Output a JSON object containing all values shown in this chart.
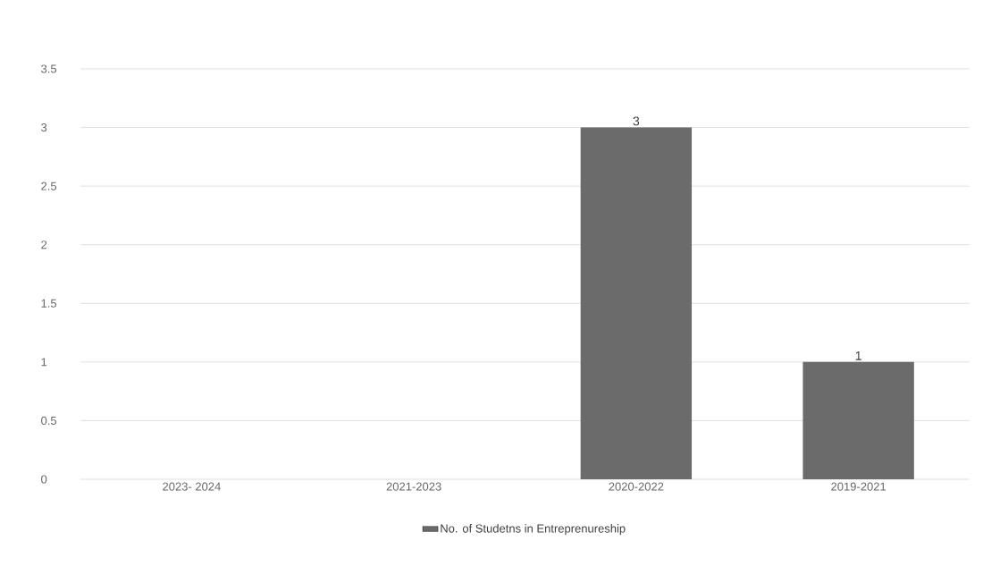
{
  "chart_data": {
    "type": "bar",
    "categories": [
      "2023- 2024",
      "2021-2023",
      "2020-2022",
      "2019-2021"
    ],
    "series": [
      {
        "name": "No. of Studetns in Entreprenureship",
        "color": "#6b6b6b",
        "values": [
          0,
          0,
          3,
          1
        ],
        "value_labels": [
          null,
          null,
          "3",
          "1"
        ]
      }
    ],
    "ylim": [
      0,
      3.5
    ],
    "yticks": [
      0,
      0.5,
      1,
      1.5,
      2,
      2.5,
      3,
      3.5
    ],
    "grid": "y",
    "legend": "bottom"
  }
}
